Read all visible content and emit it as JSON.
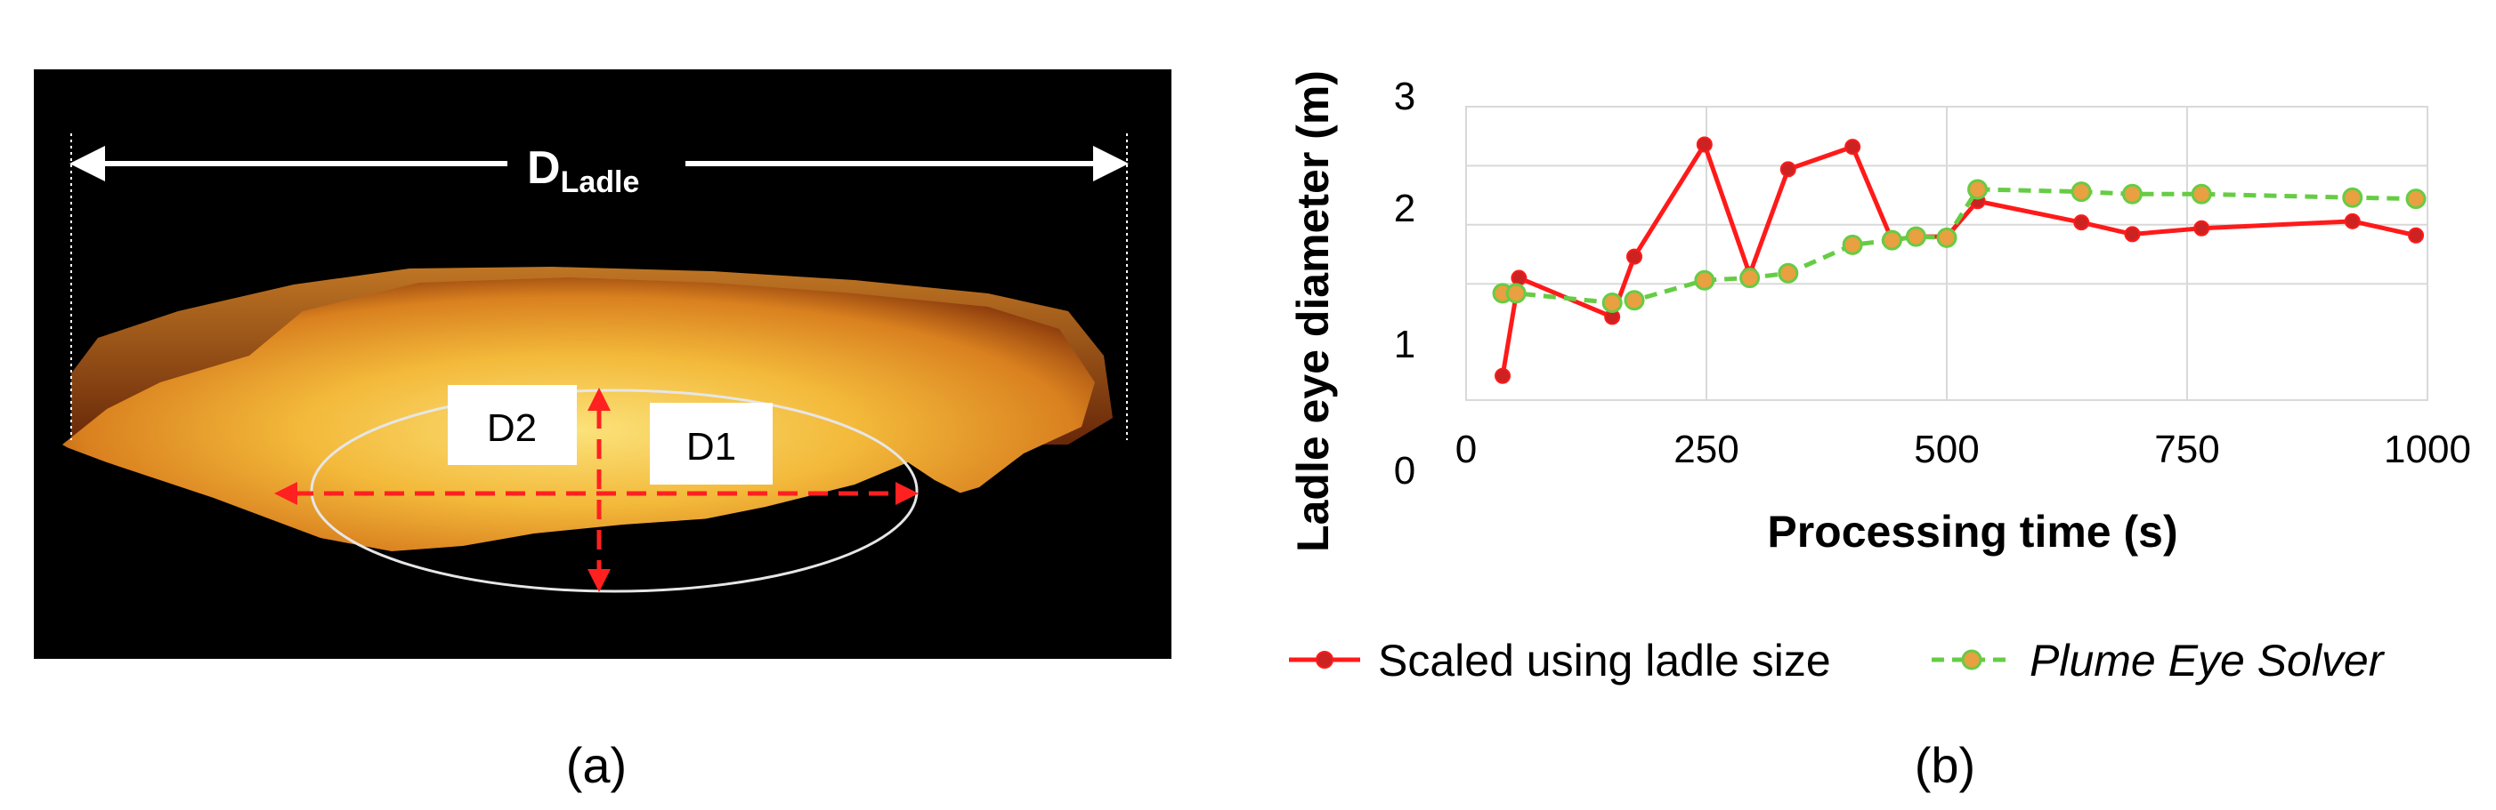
{
  "panel_a": {
    "label": "(a)",
    "ladle_label_main": "D",
    "ladle_label_sub": "Ladle",
    "d1_label": "D1",
    "d2_label": "D2",
    "colors": {
      "background": "#000000",
      "arrow_white": "#ffffff",
      "arrow_red": "#ff2020",
      "ellipse": "#e6e6e6",
      "slag_light": "#f3c14a",
      "slag_dark": "#b85a14"
    }
  },
  "panel_b": {
    "label": "(b)"
  },
  "chart_data": {
    "type": "line",
    "xlabel": "Processing time (s)",
    "ylabel": "Ladle eye diameter (m)",
    "xlim": [
      0,
      1000
    ],
    "ylim": [
      0,
      3
    ],
    "x_ticks": [
      "0",
      "250",
      "500",
      "750",
      "1000"
    ],
    "y_ticks": [
      "0",
      "1",
      "2",
      "3"
    ],
    "grid": true,
    "legend_position": "bottom",
    "series": [
      {
        "name": "Scaled using ladle size",
        "style": "solid",
        "color": "#ff1a1a",
        "marker_color": "#cc2222",
        "points": [
          {
            "x": 38,
            "y": 0.72
          },
          {
            "x": 55,
            "y": 1.55
          },
          {
            "x": 152,
            "y": 1.22
          },
          {
            "x": 175,
            "y": 1.73
          },
          {
            "x": 248,
            "y": 2.68
          },
          {
            "x": 295,
            "y": 1.58
          },
          {
            "x": 335,
            "y": 2.47
          },
          {
            "x": 402,
            "y": 2.66
          },
          {
            "x": 443,
            "y": 1.87
          },
          {
            "x": 468,
            "y": 1.9
          },
          {
            "x": 500,
            "y": 1.9
          },
          {
            "x": 532,
            "y": 2.2
          },
          {
            "x": 640,
            "y": 2.02
          },
          {
            "x": 693,
            "y": 1.92
          },
          {
            "x": 765,
            "y": 1.97
          },
          {
            "x": 922,
            "y": 2.03
          },
          {
            "x": 988,
            "y": 1.91
          }
        ]
      },
      {
        "name": "Plume Eye Solver",
        "style": "dashed",
        "color": "#66cc44",
        "marker_color": "#e8a040",
        "points": [
          {
            "x": 38,
            "y": 1.42
          },
          {
            "x": 52,
            "y": 1.42
          },
          {
            "x": 152,
            "y": 1.34
          },
          {
            "x": 175,
            "y": 1.36
          },
          {
            "x": 248,
            "y": 1.53
          },
          {
            "x": 295,
            "y": 1.55
          },
          {
            "x": 335,
            "y": 1.59
          },
          {
            "x": 402,
            "y": 1.83
          },
          {
            "x": 443,
            "y": 1.87
          },
          {
            "x": 468,
            "y": 1.9
          },
          {
            "x": 500,
            "y": 1.89
          },
          {
            "x": 532,
            "y": 2.3
          },
          {
            "x": 640,
            "y": 2.28
          },
          {
            "x": 693,
            "y": 2.26
          },
          {
            "x": 765,
            "y": 2.26
          },
          {
            "x": 922,
            "y": 2.23
          },
          {
            "x": 988,
            "y": 2.22
          }
        ]
      }
    ]
  }
}
